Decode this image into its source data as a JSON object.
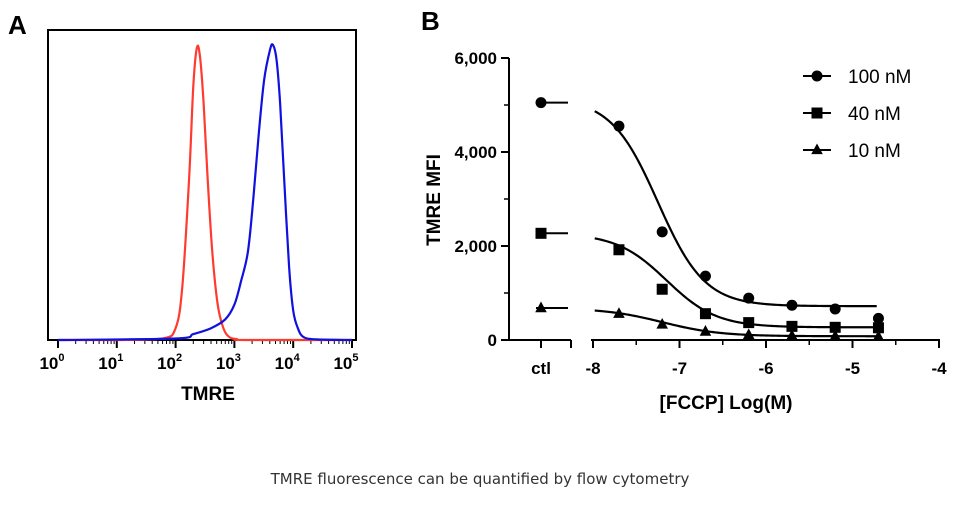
{
  "caption": "TMRE fluorescence can be quantified by flow cytometry",
  "chart_data": [
    {
      "panel": "A",
      "type": "line",
      "xlabel": "TMRE",
      "ylabel": "",
      "xscale": "log",
      "xlim": [
        1,
        100000
      ],
      "ylim": [
        0,
        1.05
      ],
      "xticks": [
        {
          "base": "10",
          "exp": "0"
        },
        {
          "base": "10",
          "exp": "1"
        },
        {
          "base": "10",
          "exp": "2"
        },
        {
          "base": "10",
          "exp": "3"
        },
        {
          "base": "10",
          "exp": "4"
        },
        {
          "base": "10",
          "exp": "5"
        }
      ],
      "colors": {
        "red": "#ff3b30",
        "blue": "#1010e0"
      },
      "series": [
        {
          "color": "#ff3b30",
          "x": [
            1,
            10,
            60,
            100,
            130,
            170,
            200,
            230,
            260,
            300,
            350,
            420,
            520,
            650,
            820,
            1100,
            1500,
            100000
          ],
          "y": [
            0,
            0,
            0.005,
            0.04,
            0.18,
            0.55,
            0.86,
            0.99,
            0.96,
            0.8,
            0.55,
            0.3,
            0.12,
            0.04,
            0.01,
            0.003,
            0,
            0
          ]
        },
        {
          "color": "#1010e0",
          "x": [
            1,
            100,
            200,
            400,
            700,
            1000,
            1300,
            1700,
            2100,
            2600,
            3200,
            4000,
            4500,
            5200,
            6000,
            7000,
            8500,
            10000,
            12000,
            15000,
            25000,
            100000
          ],
          "y": [
            0,
            0.005,
            0.02,
            0.04,
            0.07,
            0.12,
            0.2,
            0.3,
            0.48,
            0.7,
            0.88,
            0.98,
            1.0,
            0.95,
            0.8,
            0.55,
            0.25,
            0.1,
            0.04,
            0.01,
            0.002,
            0
          ]
        }
      ]
    },
    {
      "panel": "B",
      "type": "scatter",
      "xlabel": "[FCCP] Log(M)",
      "ylabel": "TMRE MFI",
      "xlim": [
        -8,
        -4
      ],
      "ylim": [
        0,
        6000
      ],
      "xticks": [
        "-8",
        "-7",
        "-6",
        "-5",
        "-4"
      ],
      "yticks": [
        "0",
        "2,000",
        "4,000",
        "6,000"
      ],
      "ctl_label": "ctl",
      "legend_position": "top-right",
      "series": [
        {
          "name": "100 nM",
          "marker": "circle",
          "ctl": 5050,
          "x": [
            -7.7,
            -7.2,
            -6.7,
            -6.2,
            -5.7,
            -5.2,
            -4.7
          ],
          "y": [
            4550,
            2300,
            1360,
            890,
            740,
            660,
            460
          ],
          "fit": {
            "bottom": 720,
            "top": 5150,
            "logec50": -7.25,
            "hill": 1.6
          }
        },
        {
          "name": "40 nM",
          "marker": "square",
          "ctl": 2270,
          "x": [
            -7.7,
            -7.2,
            -6.7,
            -6.2,
            -5.7,
            -5.2,
            -4.7
          ],
          "y": [
            1920,
            1080,
            560,
            370,
            290,
            270,
            260
          ],
          "fit": {
            "bottom": 270,
            "top": 2270,
            "logec50": -7.15,
            "hill": 1.5
          }
        },
        {
          "name": "10 nM",
          "marker": "triangle",
          "ctl": 680,
          "x": [
            -7.7,
            -7.2,
            -6.7,
            -6.2,
            -5.7,
            -5.2,
            -4.7
          ],
          "y": [
            560,
            330,
            180,
            110,
            90,
            80,
            70
          ],
          "fit": {
            "bottom": 80,
            "top": 680,
            "logec50": -7.2,
            "hill": 1.3
          }
        }
      ]
    }
  ]
}
